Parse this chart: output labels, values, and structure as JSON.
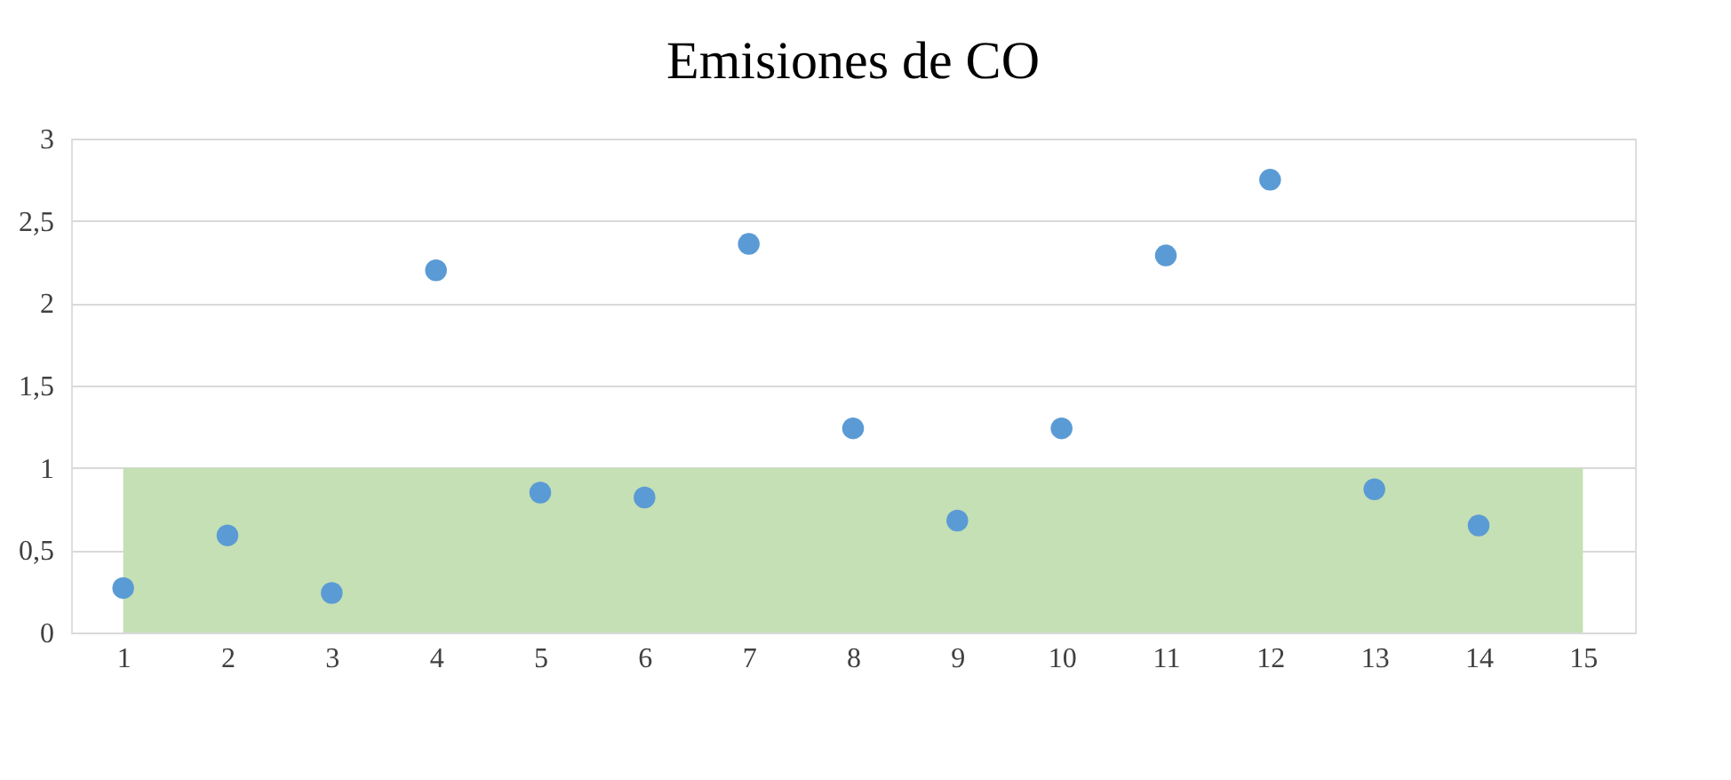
{
  "chart_data": {
    "type": "scatter",
    "title": "Emisiones de CO",
    "x": [
      1,
      2,
      3,
      4,
      5,
      6,
      7,
      8,
      9,
      10,
      11,
      12,
      13,
      14
    ],
    "series": [
      {
        "color": "#5b9bd5",
        "values": [
          0.27,
          0.59,
          0.24,
          2.2,
          0.85,
          0.82,
          2.36,
          1.24,
          0.68,
          1.24,
          2.29,
          2.75,
          0.87,
          0.65
        ]
      }
    ],
    "xlim": [
      0.5,
      15.5
    ],
    "xticks": [
      1,
      2,
      3,
      4,
      5,
      6,
      7,
      8,
      9,
      10,
      11,
      12,
      13,
      14,
      15
    ],
    "ylim": [
      0,
      3
    ],
    "yticks": [
      0,
      {
        "value": 0.5,
        "label": "0,5"
      },
      1,
      {
        "value": 1.5,
        "label": "1,5"
      },
      2,
      {
        "value": 2.5,
        "label": "2,5"
      },
      3
    ],
    "bands": [
      {
        "axis": "y",
        "from": 0,
        "to": 1,
        "color": "#c5e0b4"
      }
    ],
    "grid": "y",
    "marker": "circle"
  }
}
